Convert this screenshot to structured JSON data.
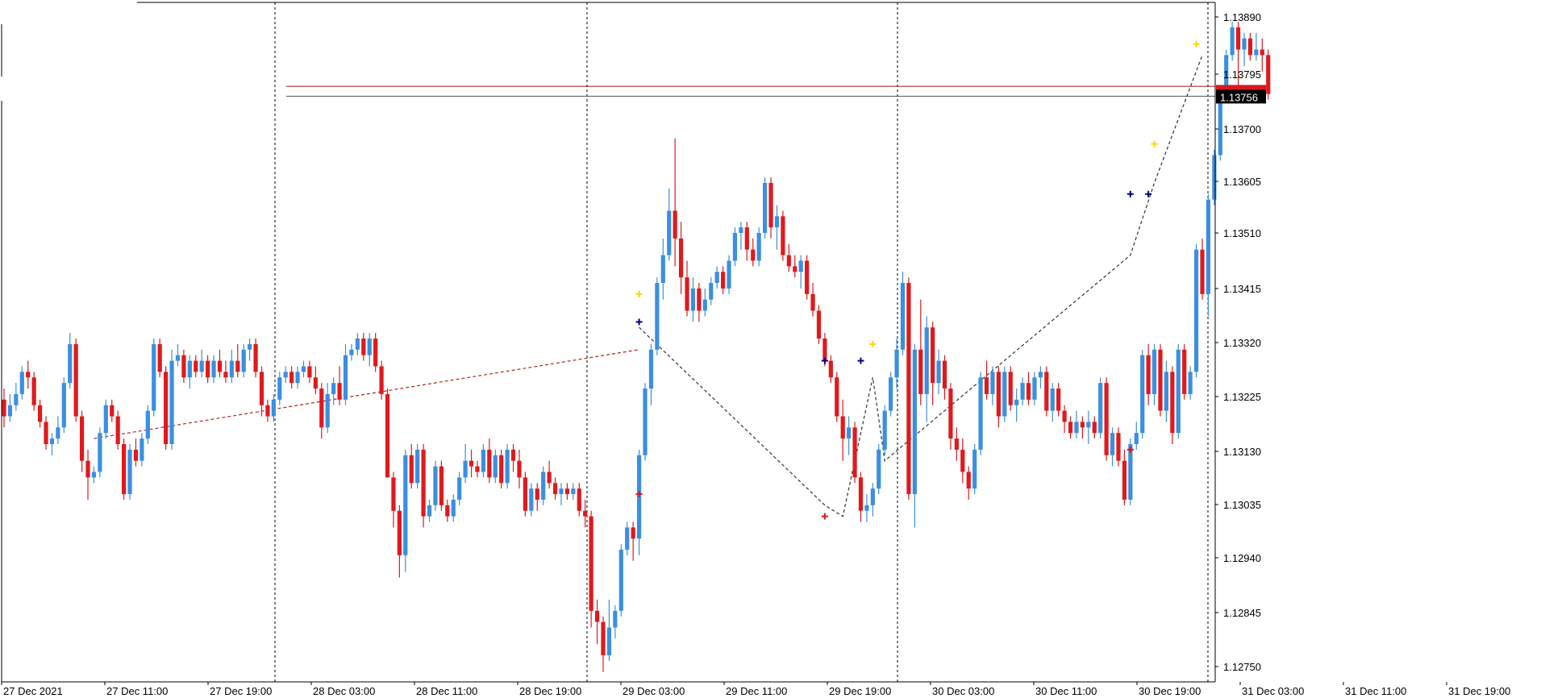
{
  "chart_data": {
    "type": "candlestick",
    "symbol": "",
    "timeframe": "",
    "colors": {
      "bull": "#3b8fe0",
      "bear": "#e0191d",
      "grid": "#000000",
      "price_tag_bg": "#000000",
      "price_tag_bg_red": "#d7191e",
      "price_tag_text": "#ffffff",
      "signal_marks": [
        "#00008b",
        "#d7191e",
        "#ffd400"
      ]
    },
    "ylim": [
      1.127,
      1.1394
    ],
    "y_ticks": [
      "1.13890",
      "1.13795",
      "1.13700",
      "1.13605",
      "1.13510",
      "1.13415",
      "1.13320",
      "1.13225",
      "1.13130",
      "1.13035",
      "1.12940",
      "1.12845",
      "1.12750"
    ],
    "x_ticks": [
      "27 Dec 2021",
      "27 Dec 11:00",
      "27 Dec 19:00",
      "28 Dec 03:00",
      "28 Dec 11:00",
      "28 Dec 19:00",
      "29 Dec 03:00",
      "29 Dec 11:00",
      "29 Dec 19:00",
      "30 Dec 03:00",
      "30 Dec 11:00",
      "30 Dec 19:00",
      "31 Dec 03:00",
      "31 Dec 11:00",
      "31 Dec 19:00"
    ],
    "period_separators": [
      "27 Dec 19:00",
      "28 Dec 19:00",
      "29 Dec 19:00",
      "30 Dec 19:00"
    ],
    "current_price": "1.13756",
    "price_lines": [
      1.13756,
      1.13768
    ],
    "candles": [
      [
        1.1321,
        1.1323,
        1.1316,
        1.1318
      ],
      [
        1.1318,
        1.1322,
        1.1317,
        1.132
      ],
      [
        1.132,
        1.1324,
        1.1319,
        1.1322
      ],
      [
        1.1322,
        1.1327,
        1.1321,
        1.1326
      ],
      [
        1.1326,
        1.1328,
        1.1323,
        1.1325
      ],
      [
        1.1325,
        1.1326,
        1.1319,
        1.132
      ],
      [
        1.132,
        1.1321,
        1.1316,
        1.1317
      ],
      [
        1.1317,
        1.1318,
        1.1312,
        1.1313
      ],
      [
        1.1313,
        1.1315,
        1.1311,
        1.1314
      ],
      [
        1.1314,
        1.1318,
        1.1313,
        1.1316
      ],
      [
        1.1316,
        1.1325,
        1.1315,
        1.1324
      ],
      [
        1.1324,
        1.1333,
        1.1323,
        1.1331
      ],
      [
        1.1331,
        1.1332,
        1.1317,
        1.1318
      ],
      [
        1.1318,
        1.1319,
        1.1308,
        1.131
      ],
      [
        1.131,
        1.1312,
        1.1303,
        1.1307
      ],
      [
        1.1307,
        1.1309,
        1.1306,
        1.1308
      ],
      [
        1.1308,
        1.1316,
        1.1307,
        1.1315
      ],
      [
        1.1315,
        1.1321,
        1.1314,
        1.132
      ],
      [
        1.132,
        1.1321,
        1.1317,
        1.1318
      ],
      [
        1.1318,
        1.1319,
        1.1312,
        1.1313
      ],
      [
        1.1313,
        1.1314,
        1.1303,
        1.1304
      ],
      [
        1.1304,
        1.1313,
        1.1303,
        1.1312
      ],
      [
        1.1312,
        1.1314,
        1.1309,
        1.131
      ],
      [
        1.131,
        1.1315,
        1.1309,
        1.1314
      ],
      [
        1.1314,
        1.132,
        1.1313,
        1.1319
      ],
      [
        1.1319,
        1.1332,
        1.1318,
        1.1331
      ],
      [
        1.1331,
        1.1332,
        1.1325,
        1.1326
      ],
      [
        1.1326,
        1.1327,
        1.1312,
        1.1313
      ],
      [
        1.1313,
        1.133,
        1.1312,
        1.1328
      ],
      [
        1.1328,
        1.1331,
        1.1327,
        1.1329
      ],
      [
        1.1329,
        1.133,
        1.1324,
        1.1325
      ],
      [
        1.1325,
        1.1329,
        1.1323,
        1.1328
      ],
      [
        1.1328,
        1.1329,
        1.1325,
        1.1326
      ],
      [
        1.1326,
        1.133,
        1.1325,
        1.1328
      ],
      [
        1.1328,
        1.1329,
        1.1324,
        1.1325
      ],
      [
        1.1325,
        1.1329,
        1.1324,
        1.1328
      ],
      [
        1.1328,
        1.133,
        1.1325,
        1.1326
      ],
      [
        1.1326,
        1.1328,
        1.1324,
        1.1325
      ],
      [
        1.1325,
        1.133,
        1.1324,
        1.1328
      ],
      [
        1.1328,
        1.1331,
        1.1325,
        1.1326
      ],
      [
        1.1326,
        1.1331,
        1.1325,
        1.133
      ],
      [
        1.133,
        1.1332,
        1.1328,
        1.1331
      ],
      [
        1.1331,
        1.1332,
        1.1325,
        1.1326
      ],
      [
        1.1326,
        1.1327,
        1.1318,
        1.132
      ],
      [
        1.132,
        1.1321,
        1.1317,
        1.1318
      ],
      [
        1.1318,
        1.1322,
        1.1317,
        1.1321
      ],
      [
        1.1321,
        1.1326,
        1.132,
        1.1325
      ],
      [
        1.1325,
        1.1327,
        1.1324,
        1.1326
      ],
      [
        1.1326,
        1.1327,
        1.1323,
        1.1324
      ],
      [
        1.1324,
        1.1327,
        1.1323,
        1.1326
      ],
      [
        1.1326,
        1.1328,
        1.1325,
        1.1327
      ],
      [
        1.1327,
        1.1328,
        1.1324,
        1.1325
      ],
      [
        1.1325,
        1.1327,
        1.1322,
        1.1323
      ],
      [
        1.1323,
        1.1324,
        1.1314,
        1.1316
      ],
      [
        1.1316,
        1.1324,
        1.1315,
        1.1322
      ],
      [
        1.1322,
        1.1325,
        1.132,
        1.1324
      ],
      [
        1.1324,
        1.1327,
        1.132,
        1.1321
      ],
      [
        1.1321,
        1.1331,
        1.132,
        1.1329
      ],
      [
        1.1329,
        1.1331,
        1.1328,
        1.133
      ],
      [
        1.133,
        1.1333,
        1.1329,
        1.1332
      ],
      [
        1.1332,
        1.1333,
        1.1328,
        1.1329
      ],
      [
        1.1329,
        1.1333,
        1.1327,
        1.1332
      ],
      [
        1.1332,
        1.1333,
        1.1326,
        1.1327
      ],
      [
        1.1327,
        1.1328,
        1.1321,
        1.1322
      ],
      [
        1.1322,
        1.1323,
        1.1307,
        1.1307
      ],
      [
        1.1307,
        1.1308,
        1.1298,
        1.1301
      ],
      [
        1.1301,
        1.1302,
        1.1289,
        1.1293
      ],
      [
        1.1293,
        1.1312,
        1.129,
        1.1311
      ],
      [
        1.1311,
        1.1313,
        1.1305,
        1.1306
      ],
      [
        1.1306,
        1.1313,
        1.1305,
        1.1312
      ],
      [
        1.1312,
        1.1313,
        1.1298,
        1.13
      ],
      [
        1.13,
        1.1303,
        1.1299,
        1.1302
      ],
      [
        1.1302,
        1.131,
        1.1301,
        1.1309
      ],
      [
        1.1309,
        1.131,
        1.1301,
        1.1302
      ],
      [
        1.1302,
        1.1303,
        1.1299,
        1.13
      ],
      [
        1.13,
        1.1304,
        1.1299,
        1.1303
      ],
      [
        1.1303,
        1.1308,
        1.1302,
        1.1307
      ],
      [
        1.1307,
        1.1313,
        1.1306,
        1.131
      ],
      [
        1.131,
        1.1312,
        1.1307,
        1.1309
      ],
      [
        1.1309,
        1.131,
        1.1307,
        1.1308
      ],
      [
        1.1308,
        1.1313,
        1.1307,
        1.1312
      ],
      [
        1.1312,
        1.1314,
        1.1306,
        1.1307
      ],
      [
        1.1307,
        1.1312,
        1.1306,
        1.1311
      ],
      [
        1.1311,
        1.1312,
        1.1305,
        1.1306
      ],
      [
        1.1306,
        1.1313,
        1.1305,
        1.1312
      ],
      [
        1.1312,
        1.1313,
        1.1308,
        1.131
      ],
      [
        1.131,
        1.1312,
        1.1305,
        1.1307
      ],
      [
        1.1307,
        1.1308,
        1.13,
        1.1301
      ],
      [
        1.1301,
        1.1306,
        1.13,
        1.1305
      ],
      [
        1.1305,
        1.1306,
        1.1301,
        1.1303
      ],
      [
        1.1303,
        1.1309,
        1.1302,
        1.1308
      ],
      [
        1.1308,
        1.131,
        1.1305,
        1.1306
      ],
      [
        1.1306,
        1.1307,
        1.1303,
        1.1304
      ],
      [
        1.1304,
        1.1306,
        1.1302,
        1.1305
      ],
      [
        1.1305,
        1.1306,
        1.1303,
        1.1304
      ],
      [
        1.1304,
        1.1306,
        1.1303,
        1.1305
      ],
      [
        1.1305,
        1.1306,
        1.13,
        1.1301
      ],
      [
        1.1301,
        1.1303,
        1.1298,
        1.13
      ],
      [
        1.13,
        1.1301,
        1.128,
        1.1283
      ],
      [
        1.1283,
        1.1285,
        1.1277,
        1.1281
      ],
      [
        1.1281,
        1.1282,
        1.1272,
        1.1275
      ],
      [
        1.1275,
        1.1285,
        1.1274,
        1.128
      ],
      [
        1.128,
        1.1284,
        1.1278,
        1.1283
      ],
      [
        1.1283,
        1.1295,
        1.1282,
        1.1294
      ],
      [
        1.1294,
        1.1299,
        1.1293,
        1.1298
      ],
      [
        1.1298,
        1.1299,
        1.1292,
        1.1296
      ],
      [
        1.1296,
        1.1312,
        1.1293,
        1.1311
      ],
      [
        1.1311,
        1.1324,
        1.131,
        1.1323
      ],
      [
        1.1323,
        1.1331,
        1.132,
        1.133
      ],
      [
        1.133,
        1.1343,
        1.1329,
        1.1342
      ],
      [
        1.1342,
        1.135,
        1.1339,
        1.1347
      ],
      [
        1.1347,
        1.1359,
        1.1346,
        1.1355
      ],
      [
        1.1355,
        1.1368,
        1.1345,
        1.135
      ],
      [
        1.135,
        1.1353,
        1.134,
        1.1343
      ],
      [
        1.1343,
        1.1346,
        1.1336,
        1.1337
      ],
      [
        1.1337,
        1.1343,
        1.1335,
        1.1341
      ],
      [
        1.1341,
        1.1342,
        1.1335,
        1.1337
      ],
      [
        1.1337,
        1.1341,
        1.1336,
        1.1339
      ],
      [
        1.1339,
        1.1343,
        1.1338,
        1.1342
      ],
      [
        1.1342,
        1.1345,
        1.1341,
        1.1344
      ],
      [
        1.1344,
        1.1345,
        1.134,
        1.1341
      ],
      [
        1.1341,
        1.1347,
        1.134,
        1.1346
      ],
      [
        1.1346,
        1.1352,
        1.1345,
        1.1351
      ],
      [
        1.1351,
        1.1353,
        1.1348,
        1.1352
      ],
      [
        1.1352,
        1.1353,
        1.1346,
        1.1348
      ],
      [
        1.1348,
        1.135,
        1.1345,
        1.1346
      ],
      [
        1.1346,
        1.1352,
        1.1345,
        1.1351
      ],
      [
        1.1351,
        1.1361,
        1.135,
        1.136
      ],
      [
        1.136,
        1.1361,
        1.135,
        1.1352
      ],
      [
        1.1352,
        1.1356,
        1.1348,
        1.1354
      ],
      [
        1.1354,
        1.1355,
        1.1346,
        1.1347
      ],
      [
        1.1347,
        1.1349,
        1.1344,
        1.1345
      ],
      [
        1.1345,
        1.1347,
        1.1343,
        1.1344
      ],
      [
        1.1344,
        1.1347,
        1.1341,
        1.1346
      ],
      [
        1.1346,
        1.1347,
        1.1339,
        1.134
      ],
      [
        1.134,
        1.1342,
        1.1336,
        1.1337
      ],
      [
        1.1337,
        1.1338,
        1.1331,
        1.1332
      ],
      [
        1.1332,
        1.1333,
        1.1327,
        1.1328
      ],
      [
        1.1328,
        1.1329,
        1.1324,
        1.1325
      ],
      [
        1.1325,
        1.1326,
        1.1317,
        1.1318
      ],
      [
        1.1318,
        1.1321,
        1.131,
        1.1314
      ],
      [
        1.1314,
        1.1318,
        1.1311,
        1.1316
      ],
      [
        1.1316,
        1.1317,
        1.1306,
        1.1307
      ],
      [
        1.1307,
        1.1308,
        1.1299,
        1.1301
      ],
      [
        1.1301,
        1.1304,
        1.1299,
        1.1302
      ],
      [
        1.1302,
        1.1306,
        1.13,
        1.1305
      ],
      [
        1.1305,
        1.1313,
        1.1304,
        1.1312
      ],
      [
        1.1312,
        1.132,
        1.1311,
        1.1319
      ],
      [
        1.1319,
        1.1326,
        1.1318,
        1.1325
      ],
      [
        1.1325,
        1.1332,
        1.1323,
        1.133
      ],
      [
        1.133,
        1.1344,
        1.1329,
        1.1342
      ],
      [
        1.1342,
        1.1343,
        1.1303,
        1.1304
      ],
      [
        1.1304,
        1.1331,
        1.1298,
        1.133
      ],
      [
        1.133,
        1.1339,
        1.132,
        1.1322
      ],
      [
        1.1322,
        1.1336,
        1.1317,
        1.1334
      ],
      [
        1.1334,
        1.1335,
        1.132,
        1.1324
      ],
      [
        1.1324,
        1.133,
        1.1322,
        1.1328
      ],
      [
        1.1328,
        1.1329,
        1.1321,
        1.1323
      ],
      [
        1.1323,
        1.1324,
        1.1312,
        1.1314
      ],
      [
        1.1314,
        1.1316,
        1.131,
        1.1312
      ],
      [
        1.1312,
        1.1314,
        1.1306,
        1.1308
      ],
      [
        1.1308,
        1.1309,
        1.1303,
        1.1305
      ],
      [
        1.1305,
        1.1313,
        1.1304,
        1.1312
      ],
      [
        1.1312,
        1.1326,
        1.1311,
        1.1325
      ],
      [
        1.1325,
        1.1328,
        1.1321,
        1.1322
      ],
      [
        1.1322,
        1.1327,
        1.132,
        1.1326
      ],
      [
        1.1326,
        1.1327,
        1.1316,
        1.1318
      ],
      [
        1.1318,
        1.1327,
        1.1317,
        1.1326
      ],
      [
        1.1326,
        1.1327,
        1.1319,
        1.132
      ],
      [
        1.132,
        1.1323,
        1.1317,
        1.1321
      ],
      [
        1.1321,
        1.1325,
        1.132,
        1.1324
      ],
      [
        1.1324,
        1.1326,
        1.132,
        1.1321
      ],
      [
        1.1321,
        1.1326,
        1.132,
        1.1325
      ],
      [
        1.1325,
        1.1327,
        1.1323,
        1.1326
      ],
      [
        1.1326,
        1.1327,
        1.1318,
        1.1319
      ],
      [
        1.1319,
        1.1324,
        1.1317,
        1.1323
      ],
      [
        1.1323,
        1.1324,
        1.1318,
        1.1319
      ],
      [
        1.1319,
        1.132,
        1.1315,
        1.1317
      ],
      [
        1.1317,
        1.1318,
        1.1314,
        1.1315
      ],
      [
        1.1315,
        1.1319,
        1.1314,
        1.1317
      ],
      [
        1.1317,
        1.1318,
        1.1314,
        1.1316
      ],
      [
        1.1316,
        1.1319,
        1.1313,
        1.1317
      ],
      [
        1.1317,
        1.1318,
        1.1314,
        1.1315
      ],
      [
        1.1315,
        1.1325,
        1.1314,
        1.1324
      ],
      [
        1.1324,
        1.1325,
        1.131,
        1.1311
      ],
      [
        1.1311,
        1.1316,
        1.1309,
        1.1315
      ],
      [
        1.1315,
        1.1316,
        1.1309,
        1.131
      ],
      [
        1.131,
        1.1312,
        1.1302,
        1.1303
      ],
      [
        1.1303,
        1.1314,
        1.1302,
        1.1313
      ],
      [
        1.1313,
        1.1317,
        1.1312,
        1.1315
      ],
      [
        1.1315,
        1.133,
        1.1314,
        1.1329
      ],
      [
        1.1329,
        1.1331,
        1.132,
        1.1322
      ],
      [
        1.1322,
        1.1331,
        1.132,
        1.133
      ],
      [
        1.133,
        1.1331,
        1.1318,
        1.1319
      ],
      [
        1.1319,
        1.1328,
        1.1317,
        1.1326
      ],
      [
        1.1326,
        1.1327,
        1.1313,
        1.1315
      ],
      [
        1.1315,
        1.1331,
        1.1314,
        1.133
      ],
      [
        1.133,
        1.1331,
        1.1321,
        1.1322
      ],
      [
        1.1322,
        1.1327,
        1.1321,
        1.1326
      ],
      [
        1.1326,
        1.1349,
        1.1325,
        1.1348
      ],
      [
        1.1348,
        1.135,
        1.1339,
        1.134
      ],
      [
        1.134,
        1.1358,
        1.1336,
        1.1357
      ],
      [
        1.1357,
        1.1366,
        1.1356,
        1.1365
      ],
      [
        1.1365,
        1.1377,
        1.1364,
        1.1376
      ],
      [
        1.1376,
        1.1384,
        1.1375,
        1.1383
      ],
      [
        1.1383,
        1.1389,
        1.1382,
        1.1388
      ],
      [
        1.1388,
        1.1389,
        1.1375,
        1.1384
      ],
      [
        1.1384,
        1.1387,
        1.1381,
        1.1386
      ],
      [
        1.1386,
        1.1387,
        1.1382,
        1.1383
      ],
      [
        1.1383,
        1.1387,
        1.1382,
        1.1384
      ],
      [
        1.1384,
        1.1386,
        1.138,
        1.1383
      ],
      [
        1.1383,
        1.1384,
        1.1375,
        1.1376
      ]
    ]
  }
}
